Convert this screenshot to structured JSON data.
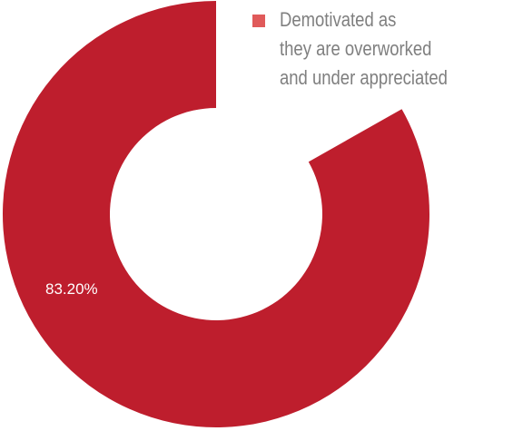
{
  "chart_data": {
    "type": "donut",
    "series": [
      {
        "name": "Demotivated as\nthey are overworked\nand under  appreciated",
        "color": "#be1e2d",
        "legend_color": "#e05a5a",
        "values": [
          83.2
        ],
        "value_labels": [
          "83.20%"
        ]
      }
    ],
    "legend": "top-right"
  }
}
